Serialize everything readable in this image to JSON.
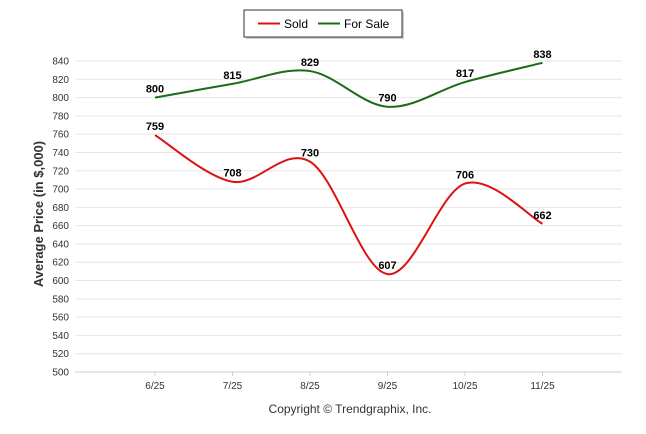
{
  "chart_data": {
    "type": "line",
    "categories": [
      "6/25",
      "7/25",
      "8/25",
      "9/25",
      "10/25",
      "11/25"
    ],
    "series": [
      {
        "name": "Sold",
        "color": "#dd1111",
        "values": [
          759,
          708,
          730,
          607,
          706,
          662
        ]
      },
      {
        "name": "For Sale",
        "color": "#1a6b1a",
        "values": [
          800,
          815,
          829,
          790,
          817,
          838
        ]
      }
    ],
    "ylabel": "Average Price (in $,000)",
    "ylim": [
      500,
      840
    ],
    "ytick_step": 20,
    "grid": true,
    "legend_position": "top-center",
    "footer": "Copyright © Trendgraphix, Inc."
  }
}
